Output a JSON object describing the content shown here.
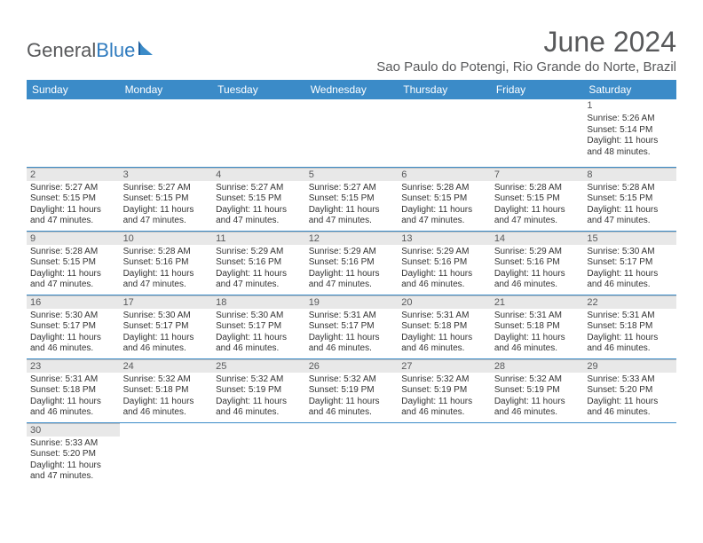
{
  "logo": {
    "text_a": "General",
    "text_b": "Blue"
  },
  "title": "June 2024",
  "location": "Sao Paulo do Potengi, Rio Grande do Norte, Brazil",
  "colors": {
    "header_bg": "#3b8bc8",
    "header_text": "#ffffff",
    "dayhead_bg": "#e8e8e8",
    "text": "#333333",
    "title_text": "#58595b",
    "rule": "#3b8bc8"
  },
  "weekdays": [
    "Sunday",
    "Monday",
    "Tuesday",
    "Wednesday",
    "Thursday",
    "Friday",
    "Saturday"
  ],
  "weeks": [
    [
      null,
      null,
      null,
      null,
      null,
      null,
      {
        "n": "1",
        "sr": "5:26 AM",
        "ss": "5:14 PM",
        "dl": "11 hours and 48 minutes."
      }
    ],
    [
      {
        "n": "2",
        "sr": "5:27 AM",
        "ss": "5:15 PM",
        "dl": "11 hours and 47 minutes."
      },
      {
        "n": "3",
        "sr": "5:27 AM",
        "ss": "5:15 PM",
        "dl": "11 hours and 47 minutes."
      },
      {
        "n": "4",
        "sr": "5:27 AM",
        "ss": "5:15 PM",
        "dl": "11 hours and 47 minutes."
      },
      {
        "n": "5",
        "sr": "5:27 AM",
        "ss": "5:15 PM",
        "dl": "11 hours and 47 minutes."
      },
      {
        "n": "6",
        "sr": "5:28 AM",
        "ss": "5:15 PM",
        "dl": "11 hours and 47 minutes."
      },
      {
        "n": "7",
        "sr": "5:28 AM",
        "ss": "5:15 PM",
        "dl": "11 hours and 47 minutes."
      },
      {
        "n": "8",
        "sr": "5:28 AM",
        "ss": "5:15 PM",
        "dl": "11 hours and 47 minutes."
      }
    ],
    [
      {
        "n": "9",
        "sr": "5:28 AM",
        "ss": "5:15 PM",
        "dl": "11 hours and 47 minutes."
      },
      {
        "n": "10",
        "sr": "5:28 AM",
        "ss": "5:16 PM",
        "dl": "11 hours and 47 minutes."
      },
      {
        "n": "11",
        "sr": "5:29 AM",
        "ss": "5:16 PM",
        "dl": "11 hours and 47 minutes."
      },
      {
        "n": "12",
        "sr": "5:29 AM",
        "ss": "5:16 PM",
        "dl": "11 hours and 47 minutes."
      },
      {
        "n": "13",
        "sr": "5:29 AM",
        "ss": "5:16 PM",
        "dl": "11 hours and 46 minutes."
      },
      {
        "n": "14",
        "sr": "5:29 AM",
        "ss": "5:16 PM",
        "dl": "11 hours and 46 minutes."
      },
      {
        "n": "15",
        "sr": "5:30 AM",
        "ss": "5:17 PM",
        "dl": "11 hours and 46 minutes."
      }
    ],
    [
      {
        "n": "16",
        "sr": "5:30 AM",
        "ss": "5:17 PM",
        "dl": "11 hours and 46 minutes."
      },
      {
        "n": "17",
        "sr": "5:30 AM",
        "ss": "5:17 PM",
        "dl": "11 hours and 46 minutes."
      },
      {
        "n": "18",
        "sr": "5:30 AM",
        "ss": "5:17 PM",
        "dl": "11 hours and 46 minutes."
      },
      {
        "n": "19",
        "sr": "5:31 AM",
        "ss": "5:17 PM",
        "dl": "11 hours and 46 minutes."
      },
      {
        "n": "20",
        "sr": "5:31 AM",
        "ss": "5:18 PM",
        "dl": "11 hours and 46 minutes."
      },
      {
        "n": "21",
        "sr": "5:31 AM",
        "ss": "5:18 PM",
        "dl": "11 hours and 46 minutes."
      },
      {
        "n": "22",
        "sr": "5:31 AM",
        "ss": "5:18 PM",
        "dl": "11 hours and 46 minutes."
      }
    ],
    [
      {
        "n": "23",
        "sr": "5:31 AM",
        "ss": "5:18 PM",
        "dl": "11 hours and 46 minutes."
      },
      {
        "n": "24",
        "sr": "5:32 AM",
        "ss": "5:18 PM",
        "dl": "11 hours and 46 minutes."
      },
      {
        "n": "25",
        "sr": "5:32 AM",
        "ss": "5:19 PM",
        "dl": "11 hours and 46 minutes."
      },
      {
        "n": "26",
        "sr": "5:32 AM",
        "ss": "5:19 PM",
        "dl": "11 hours and 46 minutes."
      },
      {
        "n": "27",
        "sr": "5:32 AM",
        "ss": "5:19 PM",
        "dl": "11 hours and 46 minutes."
      },
      {
        "n": "28",
        "sr": "5:32 AM",
        "ss": "5:19 PM",
        "dl": "11 hours and 46 minutes."
      },
      {
        "n": "29",
        "sr": "5:33 AM",
        "ss": "5:20 PM",
        "dl": "11 hours and 46 minutes."
      }
    ],
    [
      {
        "n": "30",
        "sr": "5:33 AM",
        "ss": "5:20 PM",
        "dl": "11 hours and 47 minutes."
      },
      null,
      null,
      null,
      null,
      null,
      null
    ]
  ],
  "labels": {
    "sunrise": "Sunrise: ",
    "sunset": "Sunset: ",
    "daylight": "Daylight: "
  }
}
